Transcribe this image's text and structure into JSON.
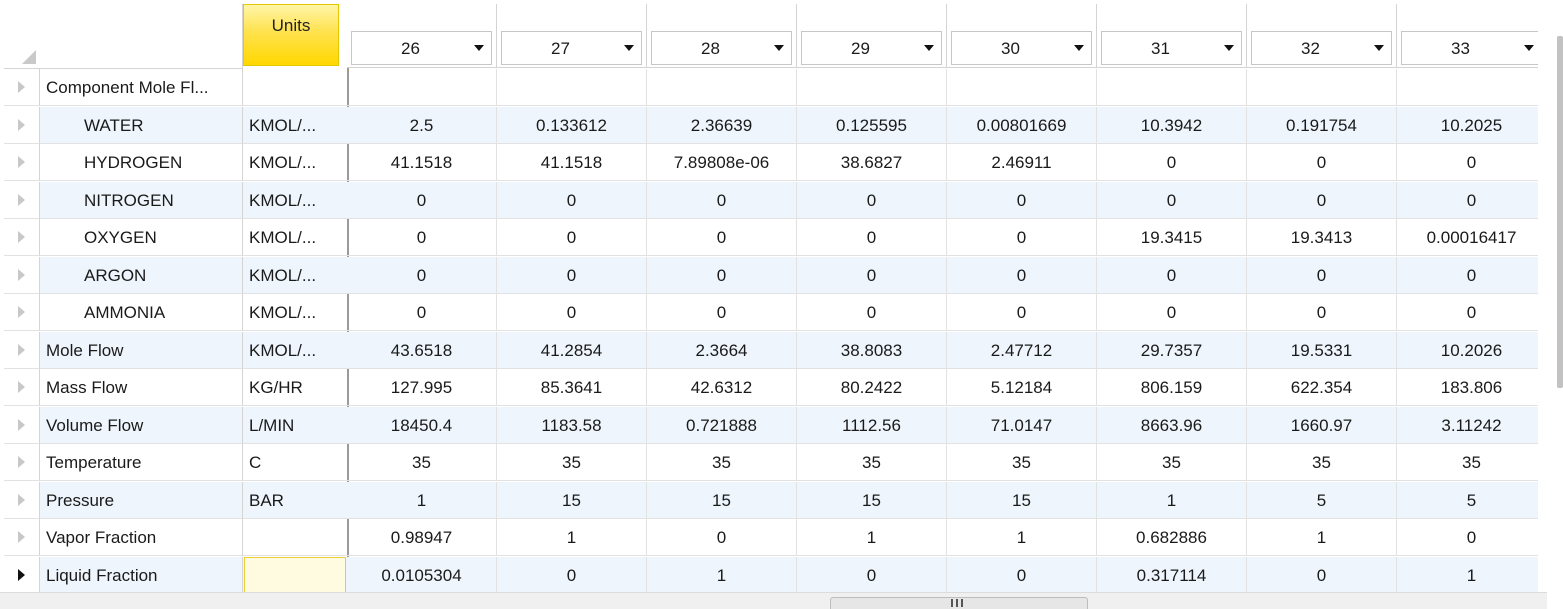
{
  "header": {
    "units_label": "Units",
    "columns": [
      "26",
      "27",
      "28",
      "29",
      "30",
      "31",
      "32",
      "33"
    ]
  },
  "rows": [
    {
      "name": "Component Mole Fl...",
      "indent": false,
      "unit": "",
      "values": [
        "",
        "",
        "",
        "",
        "",
        "",
        "",
        ""
      ]
    },
    {
      "name": "WATER",
      "indent": true,
      "unit": "KMOL/...",
      "values": [
        "2.5",
        "0.133612",
        "2.36639",
        "0.125595",
        "0.00801669",
        "10.3942",
        "0.191754",
        "10.2025"
      ]
    },
    {
      "name": "HYDROGEN",
      "indent": true,
      "unit": "KMOL/...",
      "values": [
        "41.1518",
        "41.1518",
        "7.89808e-06",
        "38.6827",
        "2.46911",
        "0",
        "0",
        "0"
      ]
    },
    {
      "name": "NITROGEN",
      "indent": true,
      "unit": "KMOL/...",
      "values": [
        "0",
        "0",
        "0",
        "0",
        "0",
        "0",
        "0",
        "0"
      ]
    },
    {
      "name": "OXYGEN",
      "indent": true,
      "unit": "KMOL/...",
      "values": [
        "0",
        "0",
        "0",
        "0",
        "0",
        "19.3415",
        "19.3413",
        "0.00016417"
      ]
    },
    {
      "name": "ARGON",
      "indent": true,
      "unit": "KMOL/...",
      "values": [
        "0",
        "0",
        "0",
        "0",
        "0",
        "0",
        "0",
        "0"
      ]
    },
    {
      "name": "AMMONIA",
      "indent": true,
      "unit": "KMOL/...",
      "values": [
        "0",
        "0",
        "0",
        "0",
        "0",
        "0",
        "0",
        "0"
      ]
    },
    {
      "name": "Mole Flow",
      "indent": false,
      "unit": "KMOL/...",
      "values": [
        "43.6518",
        "41.2854",
        "2.3664",
        "38.8083",
        "2.47712",
        "29.7357",
        "19.5331",
        "10.2026"
      ]
    },
    {
      "name": "Mass Flow",
      "indent": false,
      "unit": "KG/HR",
      "values": [
        "127.995",
        "85.3641",
        "42.6312",
        "80.2422",
        "5.12184",
        "806.159",
        "622.354",
        "183.806"
      ]
    },
    {
      "name": "Volume Flow",
      "indent": false,
      "unit": "L/MIN",
      "values": [
        "18450.4",
        "1183.58",
        "0.721888",
        "1112.56",
        "71.0147",
        "8663.96",
        "1660.97",
        "3.11242"
      ]
    },
    {
      "name": "Temperature",
      "indent": false,
      "unit": "C",
      "values": [
        "35",
        "35",
        "35",
        "35",
        "35",
        "35",
        "35",
        "35"
      ]
    },
    {
      "name": "Pressure",
      "indent": false,
      "unit": "BAR",
      "values": [
        "1",
        "15",
        "15",
        "15",
        "15",
        "1",
        "5",
        "5"
      ]
    },
    {
      "name": "Vapor Fraction",
      "indent": false,
      "unit": "",
      "values": [
        "0.98947",
        "1",
        "0",
        "1",
        "1",
        "0.682886",
        "1",
        "0"
      ]
    },
    {
      "name": "Liquid Fraction",
      "indent": false,
      "unit": "",
      "values": [
        "0.0105304",
        "0",
        "1",
        "0",
        "0",
        "0.317114",
        "0",
        "1"
      ]
    }
  ],
  "selected_row": 13,
  "colors": {
    "units_header": "#ffd800",
    "alt_row": "#eef5fc",
    "focus_border": "#e8cf3a"
  },
  "icons": {
    "row_selector": "triangle-right-icon",
    "dropdown": "chevron-down-icon",
    "corner": "select-all-icon",
    "scroll_grip": "grip-icon"
  }
}
